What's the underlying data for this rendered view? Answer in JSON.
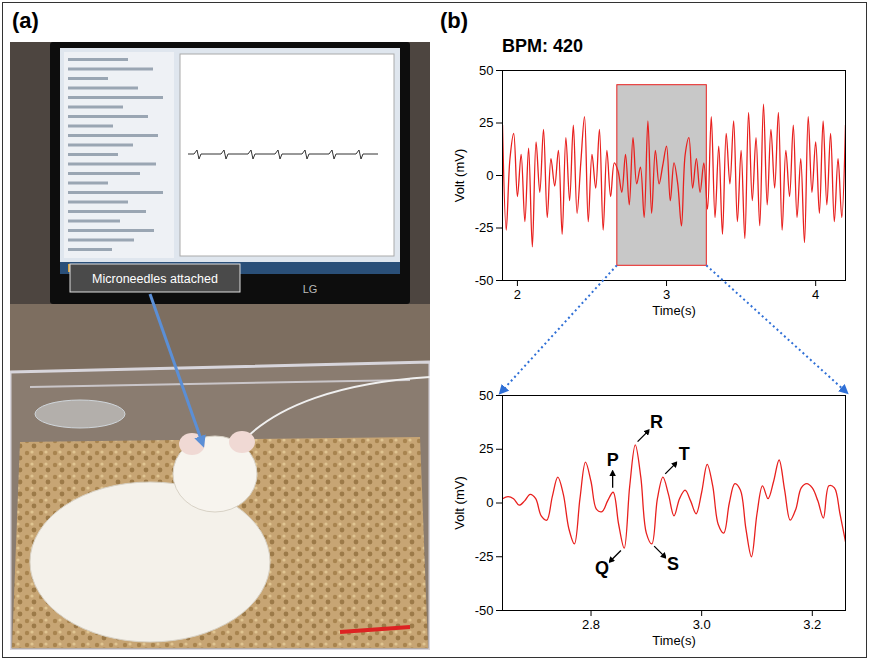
{
  "panels": {
    "a": {
      "letter": "(a)",
      "type": "photo",
      "annotation": "Microneedles attached",
      "monitor_label": "LG"
    },
    "b": {
      "letter": "(b)"
    }
  },
  "chart_data": [
    {
      "type": "line",
      "title": "BPM: 420",
      "x_label": "Time(s)",
      "y_label": "Volt (mV)",
      "color": "#e8201e",
      "xlim": [
        1.9,
        4.2
      ],
      "ylim": [
        -50,
        50
      ],
      "xticks": [
        2,
        3,
        4
      ],
      "yticks": [
        -50,
        -25,
        0,
        25,
        50
      ],
      "highlight": {
        "x": [
          2.67,
          3.27
        ],
        "y": [
          -43,
          43
        ]
      },
      "x": [
        1.9,
        1.925,
        1.95,
        1.975,
        2,
        2.025,
        2.05,
        2.075,
        2.1,
        2.125,
        2.15,
        2.175,
        2.2,
        2.225,
        2.25,
        2.275,
        2.3,
        2.325,
        2.35,
        2.375,
        2.4,
        2.425,
        2.45,
        2.475,
        2.5,
        2.525,
        2.55,
        2.575,
        2.6,
        2.625,
        2.65,
        2.675,
        2.7,
        2.725,
        2.75,
        2.775,
        2.8,
        2.825,
        2.85,
        2.875,
        2.9,
        2.925,
        2.95,
        2.975,
        3,
        3.025,
        3.05,
        3.075,
        3.1,
        3.125,
        3.15,
        3.175,
        3.2,
        3.225,
        3.25,
        3.275,
        3.3,
        3.325,
        3.35,
        3.375,
        3.4,
        3.425,
        3.45,
        3.475,
        3.5,
        3.525,
        3.55,
        3.575,
        3.6,
        3.625,
        3.65,
        3.675,
        3.7,
        3.725,
        3.75,
        3.775,
        3.8,
        3.825,
        3.85,
        3.875,
        3.9,
        3.925,
        3.95,
        3.975,
        4,
        4.025,
        4.05,
        4.075,
        4.1,
        4.125,
        4.15,
        4.175,
        4.2
      ],
      "values": [
        24,
        -26,
        8,
        20,
        -10,
        10,
        -22,
        13,
        -34,
        16,
        -8,
        22,
        -20,
        8,
        -5,
        12,
        -28,
        18,
        -12,
        24,
        -18,
        6,
        28,
        -22,
        10,
        -6,
        22,
        -26,
        12,
        -10,
        6,
        2,
        -8,
        10,
        -14,
        18,
        -4,
        4,
        -20,
        26,
        -18,
        12,
        -4,
        5,
        14,
        -12,
        6,
        -4,
        -24,
        10,
        18,
        -6,
        8,
        -8,
        6,
        -16,
        28,
        -20,
        14,
        -28,
        20,
        -4,
        26,
        -22,
        12,
        -30,
        30,
        -12,
        18,
        -24,
        34,
        -14,
        22,
        -6,
        30,
        -26,
        12,
        -10,
        24,
        -20,
        8,
        -32,
        28,
        -8,
        16,
        -18,
        26,
        -14,
        20,
        -22,
        8,
        -20,
        24
      ]
    },
    {
      "type": "line",
      "x_label": "Time(s)",
      "y_label": "Volt (mV)",
      "color": "#e8201e",
      "xlim": [
        2.64,
        3.26
      ],
      "ylim": [
        -50,
        50
      ],
      "xticks": [
        2.8,
        {
          "value": 3,
          "label": "3.0"
        },
        3.2
      ],
      "yticks": [
        -50,
        -25,
        0,
        25,
        50
      ],
      "x": [
        2.64,
        2.65,
        2.66,
        2.67,
        2.68,
        2.69,
        2.7,
        2.71,
        2.72,
        2.73,
        2.74,
        2.75,
        2.76,
        2.77,
        2.78,
        2.79,
        2.8,
        2.81,
        2.82,
        2.83,
        2.84,
        2.85,
        2.86,
        2.87,
        2.88,
        2.89,
        2.9,
        2.91,
        2.92,
        2.93,
        2.94,
        2.95,
        2.96,
        2.97,
        2.98,
        2.99,
        3,
        3.01,
        3.02,
        3.03,
        3.04,
        3.05,
        3.06,
        3.07,
        3.08,
        3.09,
        3.1,
        3.11,
        3.12,
        3.13,
        3.14,
        3.15,
        3.16,
        3.17,
        3.18,
        3.19,
        3.2,
        3.21,
        3.22,
        3.23,
        3.24,
        3.25,
        3.26
      ],
      "values": [
        2,
        3,
        2,
        -1,
        1,
        4,
        2,
        -6,
        -8,
        3,
        12,
        4,
        -12,
        -19,
        2,
        19,
        10,
        -3,
        -4,
        1,
        5,
        -10,
        -21,
        8,
        27,
        12,
        -14,
        -19,
        2,
        12,
        4,
        -6,
        2,
        6,
        1,
        -5,
        5,
        18,
        8,
        -10,
        -14,
        0,
        9,
        6,
        -12,
        -25,
        -5,
        8,
        2,
        10,
        20,
        6,
        -8,
        -3,
        7,
        9,
        7,
        1,
        -7,
        8,
        7,
        -5,
        -18
      ],
      "annotations": [
        {
          "text": "P",
          "x": 2.84,
          "y": 5,
          "side": "above"
        },
        {
          "text": "Q",
          "x": 2.86,
          "y": -21,
          "side": "below-left"
        },
        {
          "text": "R",
          "x": 2.88,
          "y": 27,
          "side": "above-right"
        },
        {
          "text": "S",
          "x": 2.91,
          "y": -19,
          "side": "below-right"
        },
        {
          "text": "T",
          "x": 2.93,
          "y": 12,
          "side": "above-right"
        }
      ]
    }
  ]
}
